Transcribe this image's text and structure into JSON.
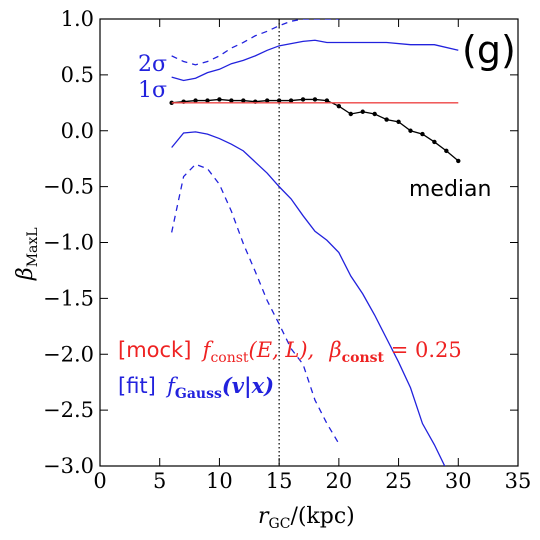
{
  "chart_data": {
    "type": "line",
    "panel_label": "(g)",
    "xlabel": {
      "main": "r",
      "sub": "GC",
      "rest": "/(kpc)"
    },
    "ylabel": {
      "main": "β",
      "sub": "MaxL"
    },
    "xlim": [
      0,
      35
    ],
    "ylim": [
      -3.0,
      1.0
    ],
    "x_ticks": [
      0,
      5,
      10,
      15,
      20,
      25,
      30,
      35
    ],
    "x_tick_labels": [
      "0",
      "5",
      "10",
      "15",
      "20",
      "25",
      "30",
      "35"
    ],
    "y_ticks": [
      1.0,
      0.5,
      0.0,
      -0.5,
      -1.0,
      -1.5,
      -2.0,
      -2.5,
      -3.0
    ],
    "y_tick_labels": [
      "1.0",
      "0.5",
      "0.0",
      "−0.5",
      "−1.0",
      "−1.5",
      "−2.0",
      "−2.5",
      "−3.0"
    ],
    "vline_x": 15,
    "colors": {
      "truth": "#ee4444",
      "sigma": "#2222dd",
      "median": "#000000"
    },
    "series": [
      {
        "name": "median",
        "style": "black-line-dots",
        "x": [
          6,
          7,
          8,
          9,
          10,
          11,
          12,
          13,
          14,
          15,
          16,
          17,
          18,
          19,
          20,
          21,
          22,
          23,
          24,
          25,
          26,
          27,
          28,
          29,
          30
        ],
        "y": [
          0.25,
          0.26,
          0.27,
          0.27,
          0.28,
          0.27,
          0.27,
          0.26,
          0.27,
          0.27,
          0.27,
          0.28,
          0.28,
          0.27,
          0.22,
          0.15,
          0.17,
          0.15,
          0.1,
          0.08,
          0.0,
          -0.03,
          -0.1,
          -0.18,
          -0.27
        ]
      },
      {
        "name": "",
        "style": "red-line",
        "x": [
          6,
          30
        ],
        "y": [
          0.25,
          0.25
        ]
      },
      {
        "name": "1σ",
        "style": "blue-solid-upper",
        "x": [
          6,
          7,
          8,
          9,
          10,
          11,
          12,
          13,
          14,
          15,
          16,
          17,
          18,
          19,
          20,
          22,
          24,
          26,
          28,
          30
        ],
        "y": [
          0.48,
          0.45,
          0.47,
          0.52,
          0.55,
          0.6,
          0.63,
          0.67,
          0.72,
          0.76,
          0.78,
          0.8,
          0.81,
          0.79,
          0.79,
          0.79,
          0.79,
          0.77,
          0.77,
          0.72
        ]
      },
      {
        "name": "",
        "style": "blue-solid-lower",
        "x": [
          6,
          7,
          8,
          9,
          10,
          11,
          12,
          13,
          14,
          15,
          16,
          17,
          18,
          19,
          20,
          21,
          22,
          23,
          24,
          25,
          26,
          27,
          28,
          29,
          30
        ],
        "y": [
          -0.15,
          -0.02,
          -0.01,
          -0.03,
          -0.07,
          -0.12,
          -0.18,
          -0.28,
          -0.38,
          -0.5,
          -0.61,
          -0.76,
          -0.9,
          -0.98,
          -1.09,
          -1.3,
          -1.46,
          -1.65,
          -1.86,
          -2.07,
          -2.3,
          -2.62,
          -2.81,
          -3.03,
          -3.2
        ]
      },
      {
        "name": "2σ",
        "style": "blue-dashed-upper",
        "x": [
          6,
          7,
          8,
          9,
          10,
          11,
          12,
          13,
          14,
          15,
          16,
          17,
          18,
          19,
          20
        ],
        "y": [
          0.67,
          0.62,
          0.59,
          0.62,
          0.67,
          0.74,
          0.79,
          0.85,
          0.89,
          0.94,
          0.98,
          1.0,
          1.0,
          1.0,
          1.0
        ]
      },
      {
        "name": "",
        "style": "blue-dashed-lower",
        "x": [
          6,
          7,
          8,
          9,
          10,
          11,
          12,
          13,
          14,
          15,
          16,
          17,
          18,
          19,
          20
        ],
        "y": [
          -0.91,
          -0.41,
          -0.3,
          -0.34,
          -0.48,
          -0.72,
          -1.01,
          -1.26,
          -1.52,
          -1.73,
          -1.95,
          -2.09,
          -2.41,
          -2.62,
          -2.8
        ]
      }
    ],
    "annotations": {
      "two_sigma": "2σ",
      "one_sigma": "1σ",
      "median_label": "median",
      "mock_tag": "[mock]",
      "mock_f": "f",
      "mock_f_sub": "const",
      "mock_args": "(E, L),",
      "mock_beta": "β",
      "mock_beta_sub": "const",
      "mock_value": " = 0.25",
      "fit_tag": "[fit]",
      "fit_f": "f",
      "fit_f_sub": "Gauss",
      "fit_args": "(v|x)"
    }
  }
}
